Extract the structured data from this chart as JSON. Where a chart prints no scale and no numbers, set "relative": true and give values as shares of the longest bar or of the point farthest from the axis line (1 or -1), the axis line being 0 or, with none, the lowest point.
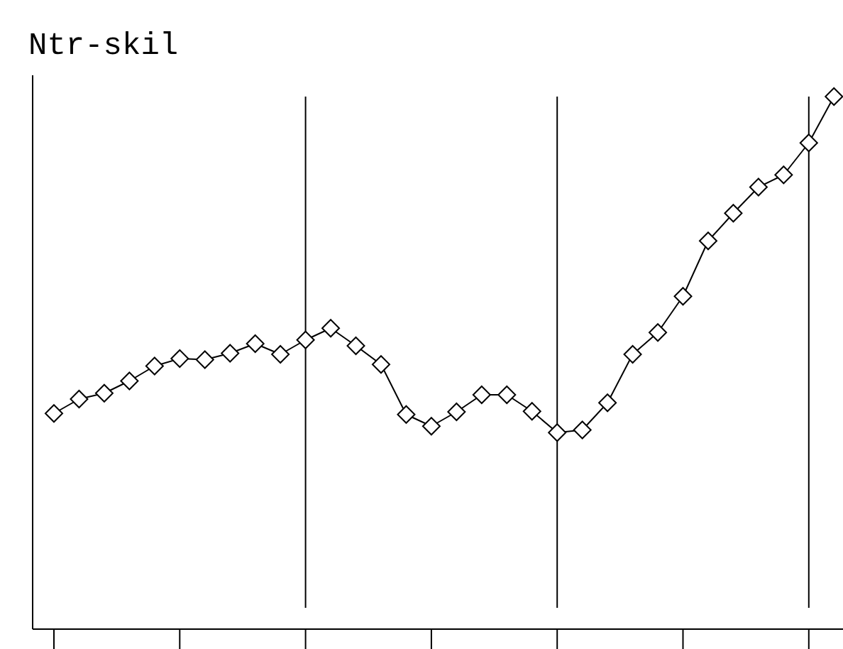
{
  "chart_data": {
    "type": "line",
    "title": "Ntr-skil",
    "relative": true,
    "categories": [
      null,
      null,
      null,
      null,
      null,
      null,
      null,
      null,
      null,
      null,
      null,
      null,
      null,
      null,
      null,
      null,
      null,
      null,
      null,
      null,
      null,
      null,
      null,
      null,
      null,
      null,
      null,
      null,
      null,
      null,
      null,
      null
    ],
    "series": [
      {
        "color": "#000000",
        "values": [
          0.405,
          0.432,
          0.443,
          0.466,
          0.494,
          0.508,
          0.506,
          0.518,
          0.536,
          0.516,
          0.543,
          0.565,
          0.532,
          0.497,
          0.403,
          0.381,
          0.408,
          0.44,
          0.44,
          0.409,
          0.369,
          0.374,
          0.425,
          0.516,
          0.557,
          0.625,
          0.729,
          0.781,
          0.83,
          0.853,
          0.913,
          1
        ]
      }
    ],
    "grid": "x",
    "marker": "diamond",
    "line_style": "solid"
  }
}
